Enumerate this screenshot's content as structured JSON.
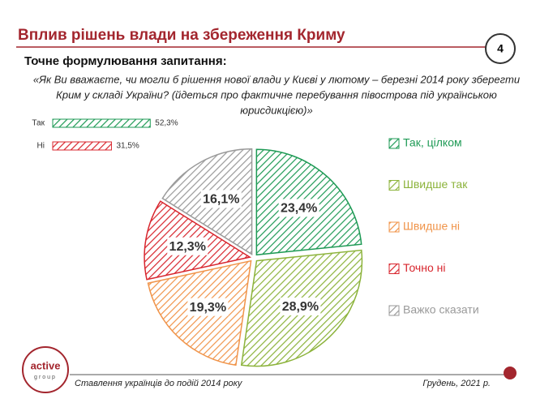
{
  "slide": {
    "title": "Вплив рішень влади на збереження Криму",
    "page_number": "4",
    "question_heading": "Точне формулювання запитання:",
    "question": [
      "«Як Ви вважаєте, чи могли б рішення нової влади у Києві у лютому – березні 2014 року зберегти",
      "Крим у складі України? (йдеться про фактичне перебування півострова під українською",
      "юрисдикцією)»"
    ],
    "logo": [
      "active",
      "group"
    ],
    "footer_left": "Ставлення українців до подій 2014 року",
    "footer_right": "Грудень, 2021 р."
  },
  "chart_data": [
    {
      "type": "bar",
      "categories": [
        "Так",
        "Ні"
      ],
      "values": [
        52.3,
        31.5
      ],
      "value_labels": [
        "52,3%",
        "31,5%"
      ],
      "colors": [
        "#1e9a55",
        "#d8262e"
      ]
    },
    {
      "type": "pie",
      "categories": [
        "Так, цілком",
        "Швидше так",
        "Швидше ні",
        "Точно ні",
        "Важко сказати"
      ],
      "values": [
        23.4,
        28.9,
        19.3,
        12.3,
        16.1
      ],
      "value_labels": [
        "23,4%",
        "28,9%",
        "19,3%",
        "12,3%",
        "16,1%"
      ],
      "colors": [
        "#1e9a55",
        "#8cb33b",
        "#f0944a",
        "#d8262e",
        "#9a9a9a"
      ]
    }
  ]
}
